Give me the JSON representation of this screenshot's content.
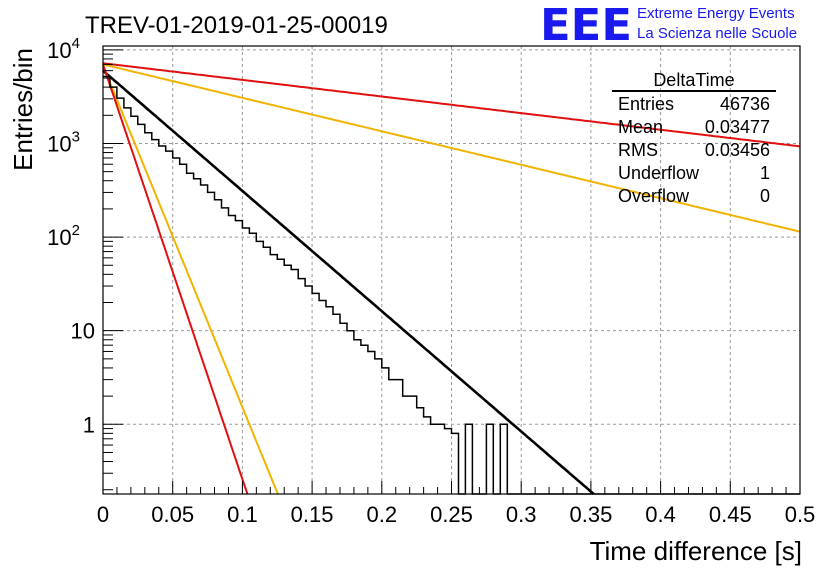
{
  "chart_data": {
    "type": "histogram",
    "title": "TREV-01-2019-01-25-00019",
    "xlabel": "Time difference [s]",
    "ylabel": "Entries/bin",
    "xlim": [
      0,
      0.5
    ],
    "ylim": [
      0.18,
      11000
    ],
    "y_scale": "log",
    "grid": true,
    "x_ticks": [
      {
        "v": 0,
        "label": "0"
      },
      {
        "v": 0.05,
        "label": "0.05"
      },
      {
        "v": 0.1,
        "label": "0.1"
      },
      {
        "v": 0.15,
        "label": "0.15"
      },
      {
        "v": 0.2,
        "label": "0.2"
      },
      {
        "v": 0.25,
        "label": "0.25"
      },
      {
        "v": 0.3,
        "label": "0.3"
      },
      {
        "v": 0.35,
        "label": "0.35"
      },
      {
        "v": 0.4,
        "label": "0.4"
      },
      {
        "v": 0.45,
        "label": "0.45"
      },
      {
        "v": 0.5,
        "label": "0.5"
      }
    ],
    "y_ticks": [
      {
        "v": 1,
        "label": "1"
      },
      {
        "v": 10,
        "label": "10"
      },
      {
        "v": 100,
        "base": "10",
        "exp": "2"
      },
      {
        "v": 1000,
        "base": "10",
        "exp": "3"
      },
      {
        "v": 10000,
        "base": "10",
        "exp": "4"
      }
    ],
    "bin_width": 0.005,
    "histogram": {
      "name": "DeltaTime",
      "color": "#000000",
      "values": [
        5200,
        4000,
        3050,
        2400,
        1950,
        1600,
        1300,
        1100,
        940,
        830,
        700,
        600,
        480,
        420,
        360,
        300,
        250,
        205,
        170,
        150,
        125,
        110,
        90,
        78,
        65,
        58,
        50,
        45,
        36,
        30,
        25,
        21,
        18,
        15,
        12,
        10,
        8,
        7,
        6,
        5,
        4,
        3,
        3,
        2,
        2,
        1.5,
        1.2,
        1,
        1,
        0.9,
        0.8,
        0,
        1,
        0,
        0,
        1,
        0,
        1,
        0,
        0,
        0,
        0,
        0,
        0,
        0,
        0,
        0,
        0,
        0,
        0,
        0,
        0,
        0,
        0,
        0,
        0,
        0,
        0,
        0,
        0,
        0,
        0,
        0,
        0,
        0,
        0,
        0,
        0,
        0,
        0,
        0,
        0,
        0,
        0,
        0,
        0,
        0,
        0,
        0,
        0
      ]
    },
    "curves": [
      {
        "color": "#000000",
        "y0": 6000,
        "tau": 0.0338,
        "x_max": 0.37
      },
      {
        "color": "#f0b400",
        "y0": 6800,
        "tau": 0.0119,
        "x_max": 0.5
      },
      {
        "color": "#e01010",
        "y0": 7000,
        "tau": 0.0098,
        "x_max": 0.5
      },
      {
        "color": "#f0b400",
        "y0": 7000,
        "tau": 0.1215,
        "x_max": 0.5
      },
      {
        "color": "#e01010",
        "y0": 7200,
        "tau": 0.2445,
        "x_max": 0.5
      }
    ],
    "stats_box": {
      "title": "DeltaTime",
      "position": "top-right",
      "rows": [
        {
          "label": "Entries",
          "value": "46736"
        },
        {
          "label": "Mean",
          "value": "0.03477"
        },
        {
          "label": "RMS",
          "value": "0.03456"
        },
        {
          "label": "Underflow",
          "value": "1"
        },
        {
          "label": "Overflow",
          "value": "0"
        }
      ]
    }
  },
  "logo": {
    "letters": "EEE",
    "line1": "Extreme Energy Events",
    "line2": "La Scienza nelle Scuole",
    "color": "#1a1aee"
  }
}
